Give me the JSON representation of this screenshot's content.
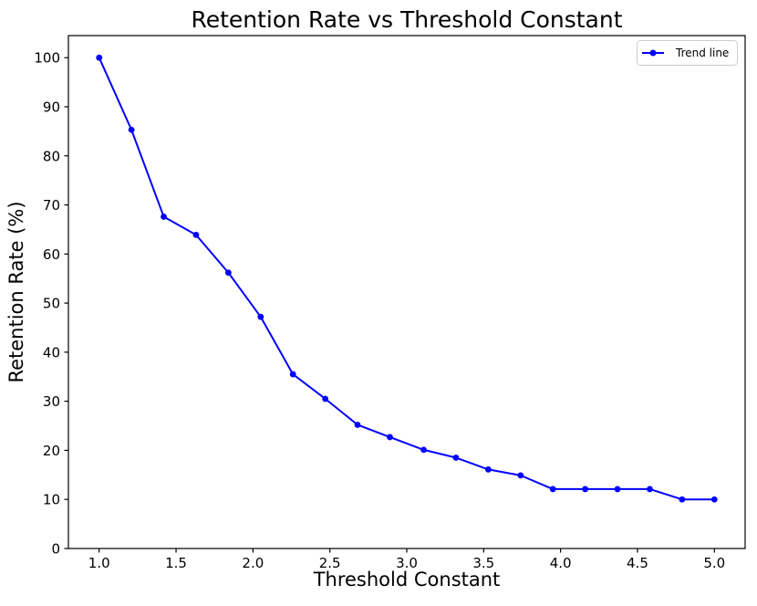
{
  "background_color": "#ffffff",
  "chart_data": {
    "type": "line",
    "title": "Retention Rate vs Threshold Constant",
    "xlabel": "Threshold Constant",
    "ylabel": "Retention Rate (%)",
    "xlim": [
      0.8,
      5.2
    ],
    "ylim": [
      0,
      104.5
    ],
    "grid": false,
    "x_ticks": {
      "values": [
        1.0,
        1.5,
        2.0,
        2.5,
        3.0,
        3.5,
        4.0,
        4.5,
        5.0
      ],
      "labels": [
        "1.0",
        "1.5",
        "2.0",
        "2.5",
        "3.0",
        "3.5",
        "4.0",
        "4.5",
        "5.0"
      ]
    },
    "y_ticks": {
      "values": [
        0,
        10,
        20,
        30,
        40,
        50,
        60,
        70,
        80,
        90,
        100
      ],
      "labels": [
        "0",
        "10",
        "20",
        "30",
        "40",
        "50",
        "60",
        "70",
        "80",
        "90",
        "100"
      ]
    },
    "legend": {
      "position": "upper right",
      "entries": [
        {
          "label": "Trend line",
          "color": "#0000ff",
          "marker": "circle"
        }
      ]
    },
    "series": [
      {
        "name": "Trend line",
        "color": "#0000ff",
        "marker": "circle",
        "line_width": 2,
        "x": [
          1.0,
          1.21,
          1.42,
          1.63,
          1.84,
          2.05,
          2.26,
          2.47,
          2.68,
          2.89,
          3.11,
          3.32,
          3.53,
          3.74,
          3.95,
          4.16,
          4.37,
          4.58,
          4.79,
          5.0
        ],
        "y": [
          100.0,
          85.3,
          67.6,
          63.9,
          56.2,
          47.2,
          35.5,
          30.5,
          25.2,
          22.7,
          20.1,
          18.5,
          16.1,
          14.9,
          12.1,
          12.1,
          12.1,
          12.1,
          10.0,
          10.0
        ]
      }
    ]
  }
}
